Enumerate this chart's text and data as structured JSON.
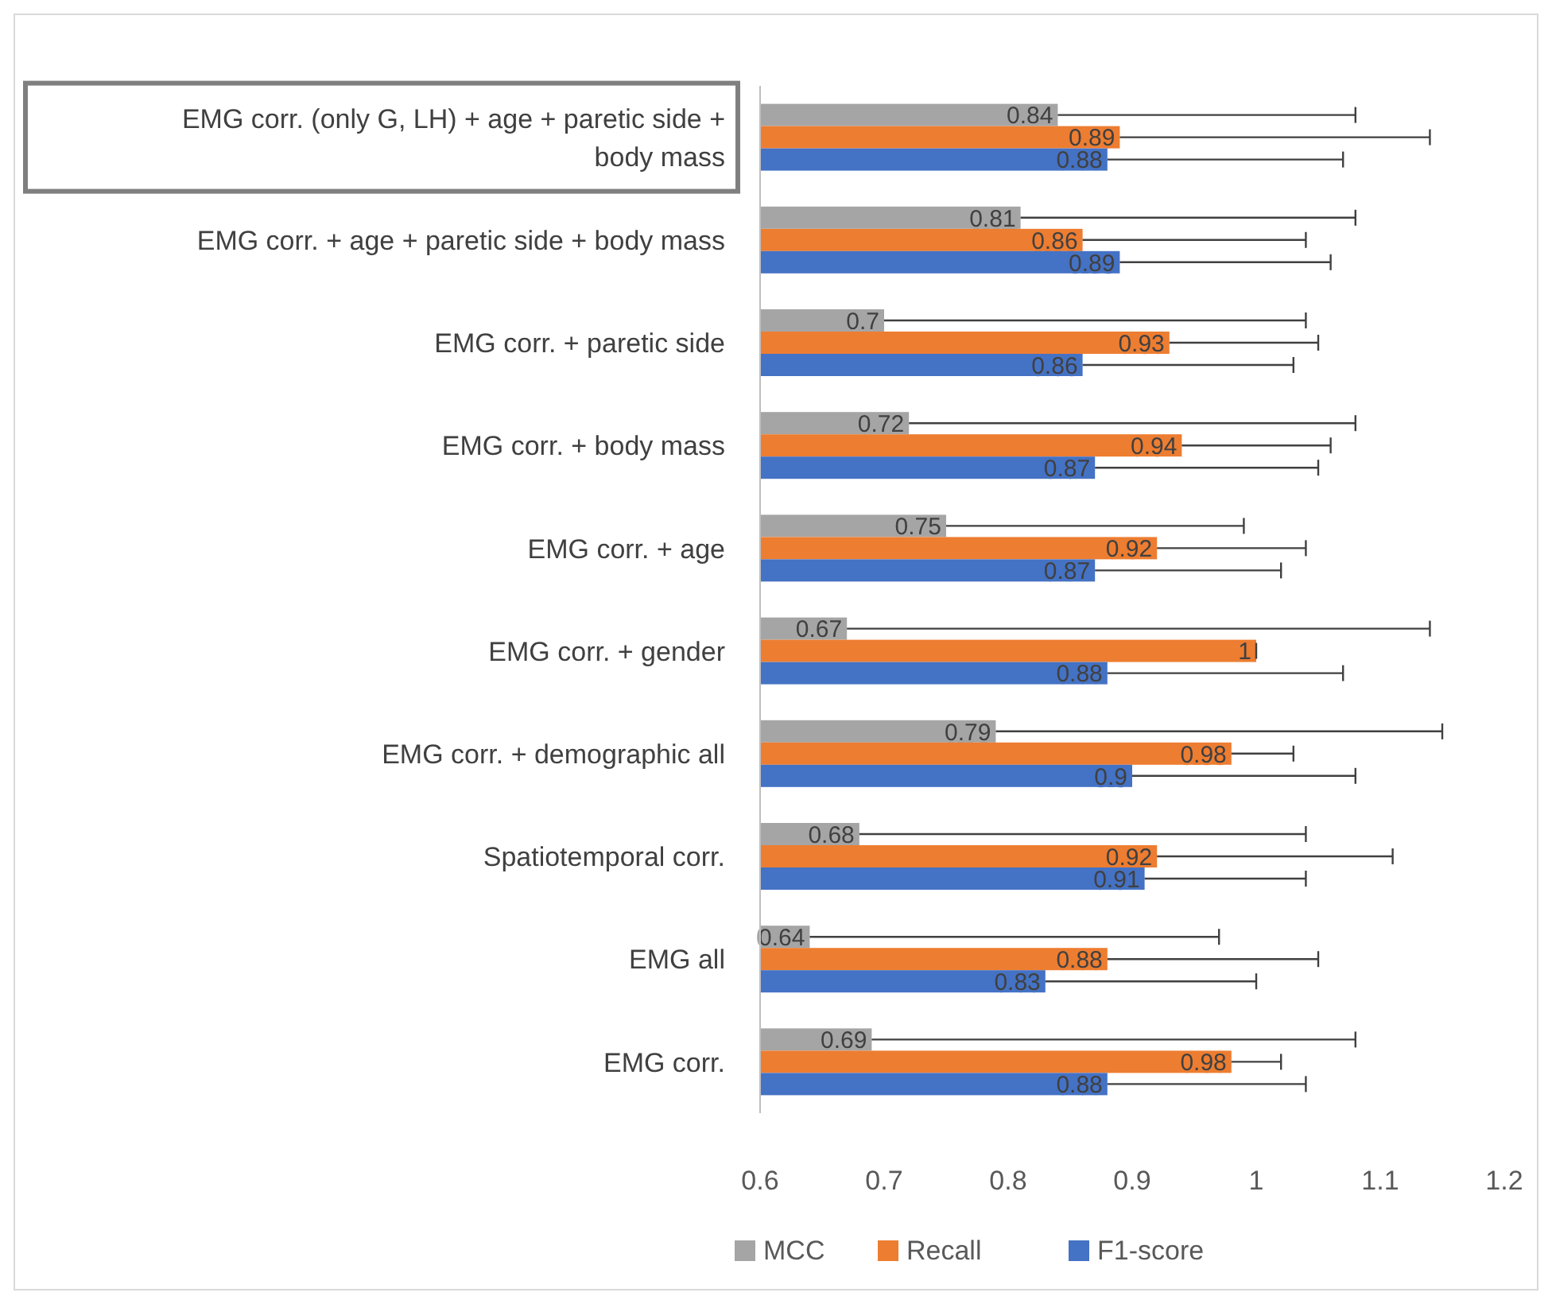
{
  "chart_data": {
    "type": "bar",
    "orientation": "horizontal",
    "categories": [
      "EMG corr. (only G, LH) + age + paretic side + body mass",
      "EMG corr. +  age + paretic side + body mass",
      "EMG corr. + paretic side",
      "EMG corr. + body mass",
      "EMG corr. + age",
      "EMG corr. + gender",
      "EMG corr. + demographic all",
      "Spatiotemporal corr.",
      "EMG all",
      "EMG corr."
    ],
    "series": [
      {
        "name": "MCC",
        "color": "#a5a5a5",
        "values": [
          0.84,
          0.81,
          0.7,
          0.72,
          0.75,
          0.67,
          0.79,
          0.68,
          0.64,
          0.69
        ],
        "errors": [
          [
            0.84,
            1.08
          ],
          [
            0.81,
            1.08
          ],
          [
            0.7,
            1.04
          ],
          [
            0.72,
            1.08
          ],
          [
            0.75,
            0.99
          ],
          [
            0.67,
            1.14
          ],
          [
            0.79,
            1.15
          ],
          [
            0.68,
            1.04
          ],
          [
            0.64,
            0.97
          ],
          [
            0.69,
            1.08
          ]
        ]
      },
      {
        "name": "Recall",
        "color": "#ed7d31",
        "values": [
          0.89,
          0.86,
          0.93,
          0.94,
          0.92,
          1,
          0.98,
          0.92,
          0.88,
          0.98
        ],
        "errors": [
          [
            0.89,
            1.14
          ],
          [
            0.86,
            1.04
          ],
          [
            0.93,
            1.05
          ],
          [
            0.94,
            1.06
          ],
          [
            0.92,
            1.04
          ],
          [
            1,
            1
          ],
          [
            0.98,
            1.03
          ],
          [
            0.92,
            1.11
          ],
          [
            0.88,
            1.05
          ],
          [
            0.98,
            1.02
          ]
        ]
      },
      {
        "name": "F1-score",
        "color": "#4472c4",
        "values": [
          0.88,
          0.89,
          0.86,
          0.87,
          0.87,
          0.88,
          0.9,
          0.91,
          0.83,
          0.88
        ],
        "errors": [
          [
            0.88,
            1.07
          ],
          [
            0.89,
            1.06
          ],
          [
            0.86,
            1.03
          ],
          [
            0.87,
            1.05
          ],
          [
            0.87,
            1.02
          ],
          [
            0.88,
            1.07
          ],
          [
            0.9,
            1.08
          ],
          [
            0.91,
            1.04
          ],
          [
            0.83,
            1.0
          ],
          [
            0.88,
            1.04
          ]
        ]
      }
    ],
    "xlim": [
      0.6,
      1.2
    ],
    "xticks": [
      0.6,
      0.7,
      0.8,
      0.9,
      1,
      1.1,
      1.2
    ],
    "data_labels": true,
    "legend": "bottom",
    "grid": false
  }
}
